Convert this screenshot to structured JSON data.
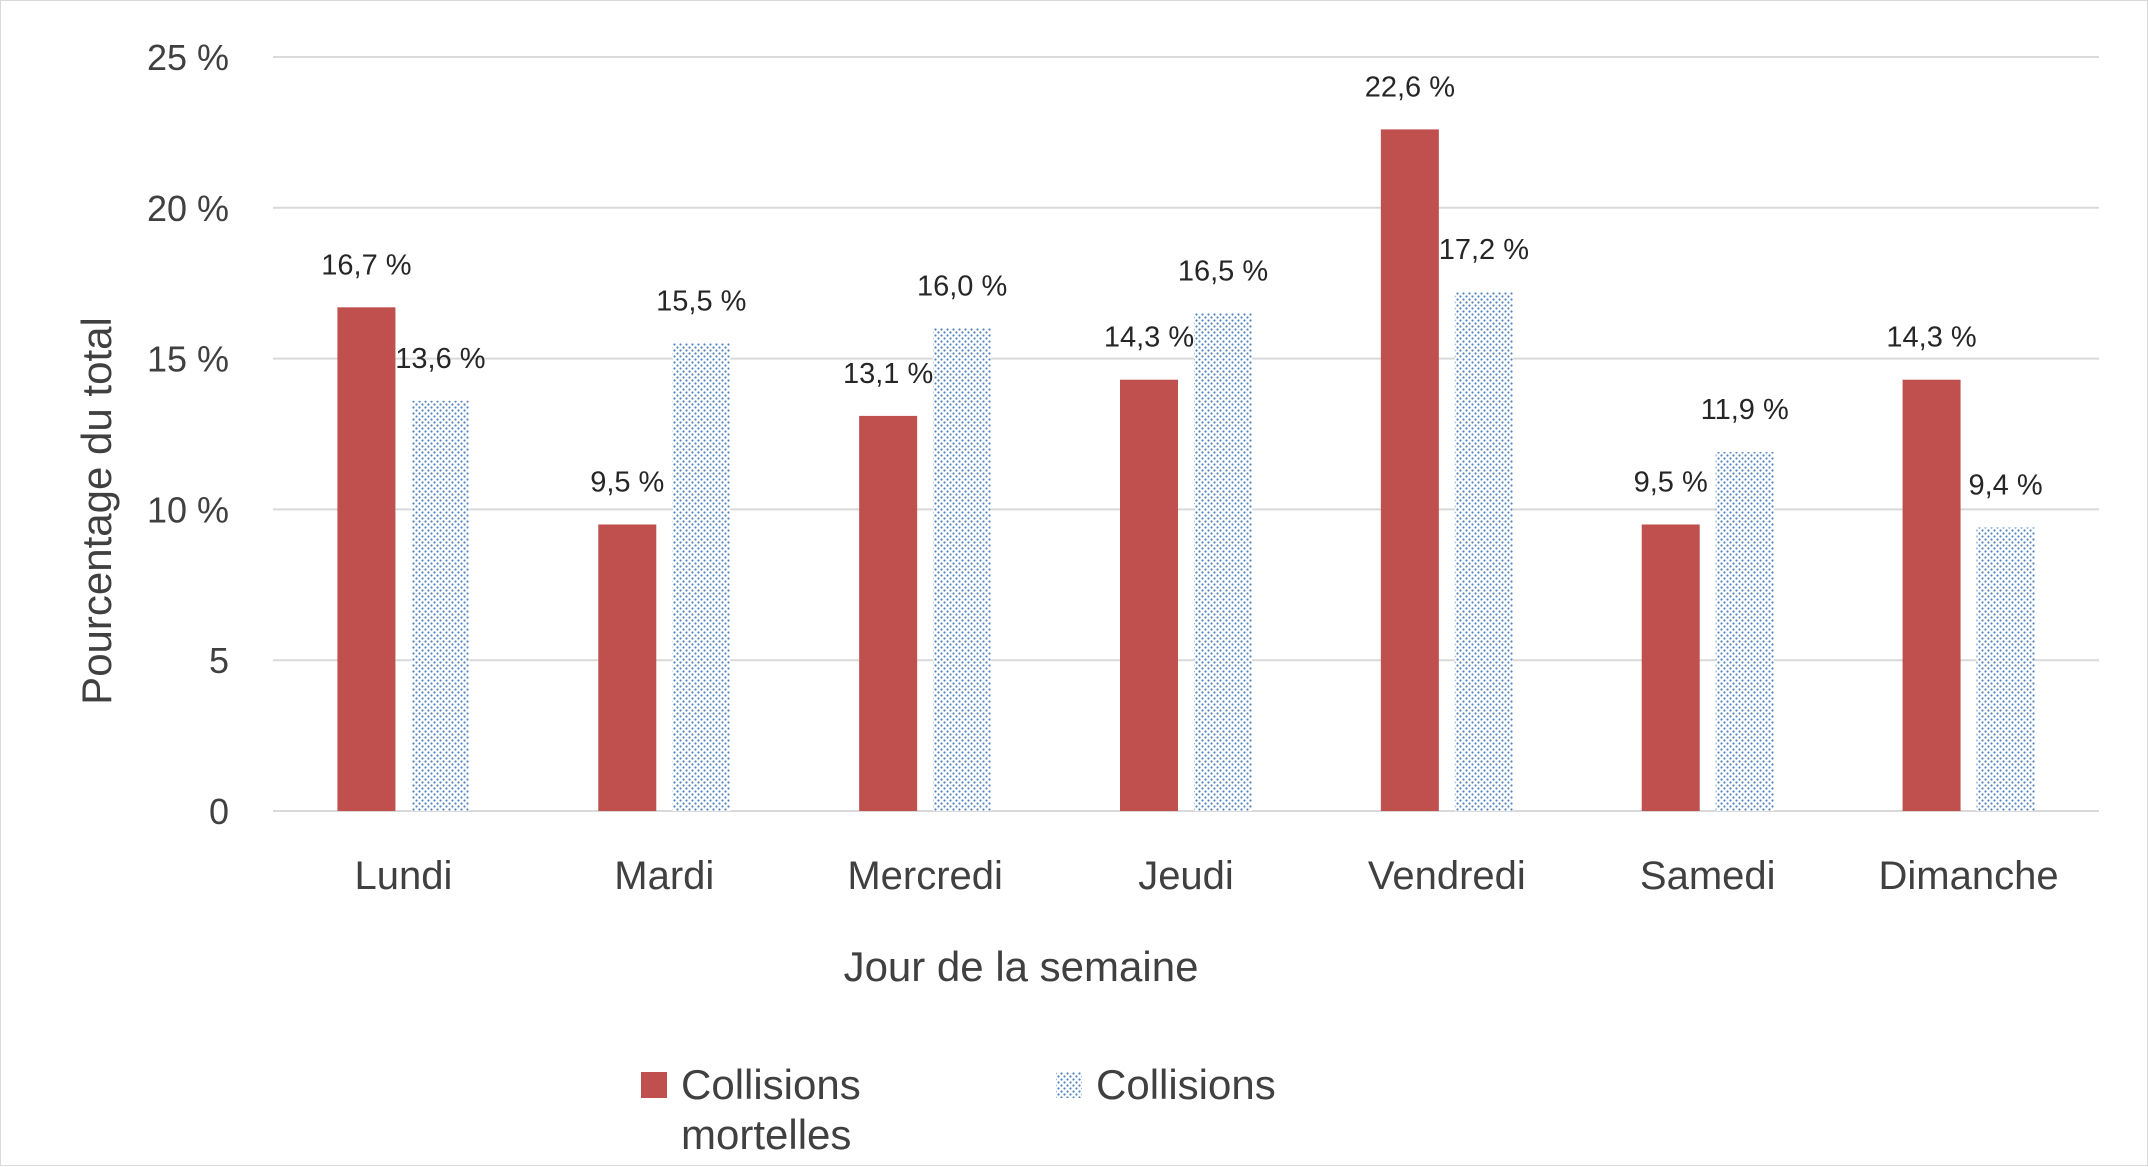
{
  "chart_data": {
    "type": "bar",
    "categories": [
      "Lundi",
      "Mardi",
      "Mercredi",
      "Jeudi",
      "Vendredi",
      "Samedi",
      "Dimanche"
    ],
    "series": [
      {
        "name": "Collisions mortelles",
        "name_lines": [
          "Collisions",
          "mortelles"
        ],
        "values": [
          16.7,
          9.5,
          13.1,
          14.3,
          22.6,
          9.5,
          14.3
        ],
        "labels": [
          "16,7 %",
          "9,5 %",
          "13,1 %",
          "14,3 %",
          "22,6 %",
          "9,5 %",
          "14,3 %"
        ],
        "color": "#c0504d",
        "pattern": "solid"
      },
      {
        "name": "Collisions",
        "name_lines": [
          "Collisions"
        ],
        "values": [
          13.6,
          15.5,
          16.0,
          16.5,
          17.2,
          11.9,
          9.4
        ],
        "labels": [
          "13,6 %",
          "15,5 %",
          "16,0 %",
          "16,5 %",
          "17,2 %",
          "11,9 %",
          "9,4 %"
        ],
        "color": "#4f81bd",
        "pattern": "dotted"
      }
    ],
    "xlabel": "Jour de la semaine",
    "ylabel": "Pourcentage du total",
    "ylim": [
      0,
      25
    ],
    "yticks": [
      0,
      5,
      10,
      15,
      20,
      25
    ],
    "ytick_labels": [
      "0",
      "5",
      "10 %",
      "15 %",
      "20 %",
      "25 %"
    ],
    "grid": true,
    "legend_position": "bottom"
  }
}
